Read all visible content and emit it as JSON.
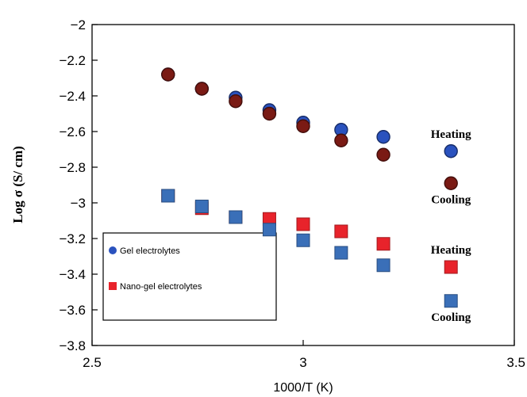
{
  "chart_data": {
    "type": "scatter",
    "title": "",
    "xlabel": "1000/T (K)",
    "ylabel": "Log σ (S/ cm)",
    "xlim": [
      2.5,
      3.5
    ],
    "ylim": [
      -3.8,
      -2
    ],
    "x_ticks": [
      "2.5",
      "3",
      "3.5"
    ],
    "y_ticks": [
      "-2",
      "-2.2",
      "-2.4",
      "-2.6",
      "-2.8",
      "-3",
      "-3.2",
      "-3.4",
      "-3.6",
      "-3.8"
    ],
    "grid": false,
    "legend": {
      "placement": "lower-left",
      "entries": [
        {
          "label": "Gel electrolytes",
          "marker": "circle",
          "color": "#2a52be"
        },
        {
          "label": "Nano-gel electrolytes",
          "marker": "square",
          "color": "#e8232b"
        }
      ]
    },
    "series": [
      {
        "group": "Gel electrolytes",
        "mode": "Heating",
        "marker": "circle",
        "color": "#2a52be",
        "x": [
          2.68,
          2.76,
          2.84,
          2.92,
          3.0,
          3.09,
          3.19
        ],
        "y": [
          -2.28,
          -2.36,
          -2.41,
          -2.48,
          -2.55,
          -2.59,
          -2.63
        ]
      },
      {
        "group": "Gel electrolytes",
        "mode": "Cooling",
        "marker": "circle",
        "color": "#7a1a14",
        "x": [
          2.68,
          2.76,
          2.84,
          2.92,
          3.0,
          3.09,
          3.19
        ],
        "y": [
          -2.28,
          -2.36,
          -2.43,
          -2.5,
          -2.57,
          -2.65,
          -2.73
        ]
      },
      {
        "group": "Nano-gel electrolytes",
        "mode": "Heating",
        "marker": "square",
        "color": "#e8232b",
        "x": [
          2.68,
          2.76,
          2.84,
          2.92,
          3.0,
          3.09,
          3.19
        ],
        "y": [
          -2.96,
          -3.03,
          -3.08,
          -3.09,
          -3.12,
          -3.16,
          -3.23
        ]
      },
      {
        "group": "Nano-gel electrolytes",
        "mode": "Cooling",
        "marker": "square",
        "color": "#3a6fb8",
        "x": [
          2.68,
          2.76,
          2.84,
          2.92,
          3.0,
          3.09,
          3.19
        ],
        "y": [
          -2.96,
          -3.02,
          -3.08,
          -3.15,
          -3.21,
          -3.28,
          -3.35
        ]
      }
    ],
    "annotations": [
      {
        "text": "Heating",
        "marker": "circle",
        "color": "#2a52be",
        "x": 3.35,
        "y": -2.71
      },
      {
        "text": "Cooling",
        "marker": "circle",
        "color": "#7a1a14",
        "x": 3.35,
        "y": -2.89
      },
      {
        "text": "Heating",
        "marker": "square",
        "color": "#e8232b",
        "x": 3.35,
        "y": -3.36
      },
      {
        "text": "Cooling",
        "marker": "square",
        "color": "#3a6fb8",
        "x": 3.35,
        "y": -3.55
      }
    ]
  }
}
